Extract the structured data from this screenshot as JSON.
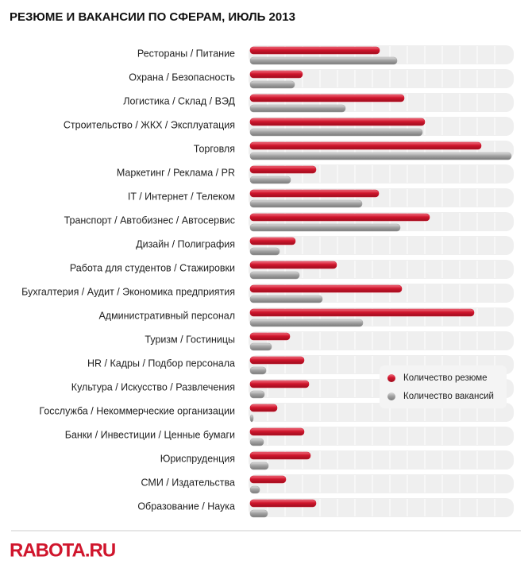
{
  "chart_data": {
    "type": "bar",
    "orientation": "horizontal",
    "title": "РЕЗЮМЕ И ВАКАНСИИ ПО СФЕРАМ, ИЮЛЬ 2013",
    "categories": [
      "Рестораны / Питание",
      "Охрана / Безопасность",
      "Логистика / Склад / ВЭД",
      "Строительство / ЖКХ / Эксплуатация",
      "Торговля",
      "Маркетинг / Реклама / PR",
      "IT / Интернет / Телеком",
      "Транспорт / Автобизнес / Автосервис",
      "Дизайн / Полиграфия",
      "Работа для студентов / Стажировки",
      "Бухгалтерия / Аудит / Экономика предприятия",
      "Административный персонал",
      "Туризм / Гостиницы",
      "HR / Кадры / Подбор персонала",
      "Культура / Искусство / Развлечения",
      "Госслужба / Некоммерческие организации",
      "Банки / Инвестиции / Ценные бумаги",
      "Юриспруденция",
      "СМИ / Издательства",
      "Образование / Наука"
    ],
    "series": [
      {
        "name": "Количество резюме",
        "color": "#d0152c",
        "values": [
          163,
          66,
          194,
          220,
          291,
          83,
          162,
          226,
          57,
          109,
          191,
          282,
          50,
          68,
          74,
          34,
          68,
          76,
          45,
          83
        ]
      },
      {
        "name": "Количество вакансий",
        "color": "#a3a3a3",
        "values": [
          185,
          56,
          120,
          217,
          329,
          51,
          141,
          189,
          37,
          62,
          91,
          142,
          27,
          20,
          18,
          4,
          17,
          23,
          12,
          22
        ]
      }
    ],
    "xlim": [
      0,
      330
    ],
    "legend": "lower-right"
  },
  "logo": "RABOTA.RU"
}
